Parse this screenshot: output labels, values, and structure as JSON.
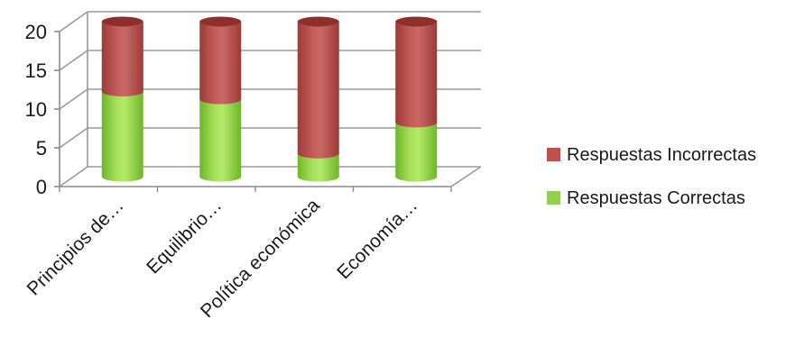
{
  "chart_data": {
    "type": "bar",
    "stacked": true,
    "style": "3d-cylinder",
    "title": "",
    "xlabel": "",
    "ylabel": "",
    "categories": [
      "Principios de…",
      "Equilibrio…",
      "Política económica",
      "Economía…"
    ],
    "series": [
      {
        "name": "Respuestas Correctas",
        "color": "#92d050",
        "values": [
          11,
          10,
          3,
          7
        ]
      },
      {
        "name": "Respuestas Incorrectas",
        "color": "#c0504d",
        "values": [
          9,
          10,
          17,
          13
        ]
      }
    ],
    "ylim": [
      0,
      20
    ],
    "yticks": [
      0,
      5,
      10,
      15,
      20
    ],
    "grid": true,
    "legend_position": "right"
  }
}
